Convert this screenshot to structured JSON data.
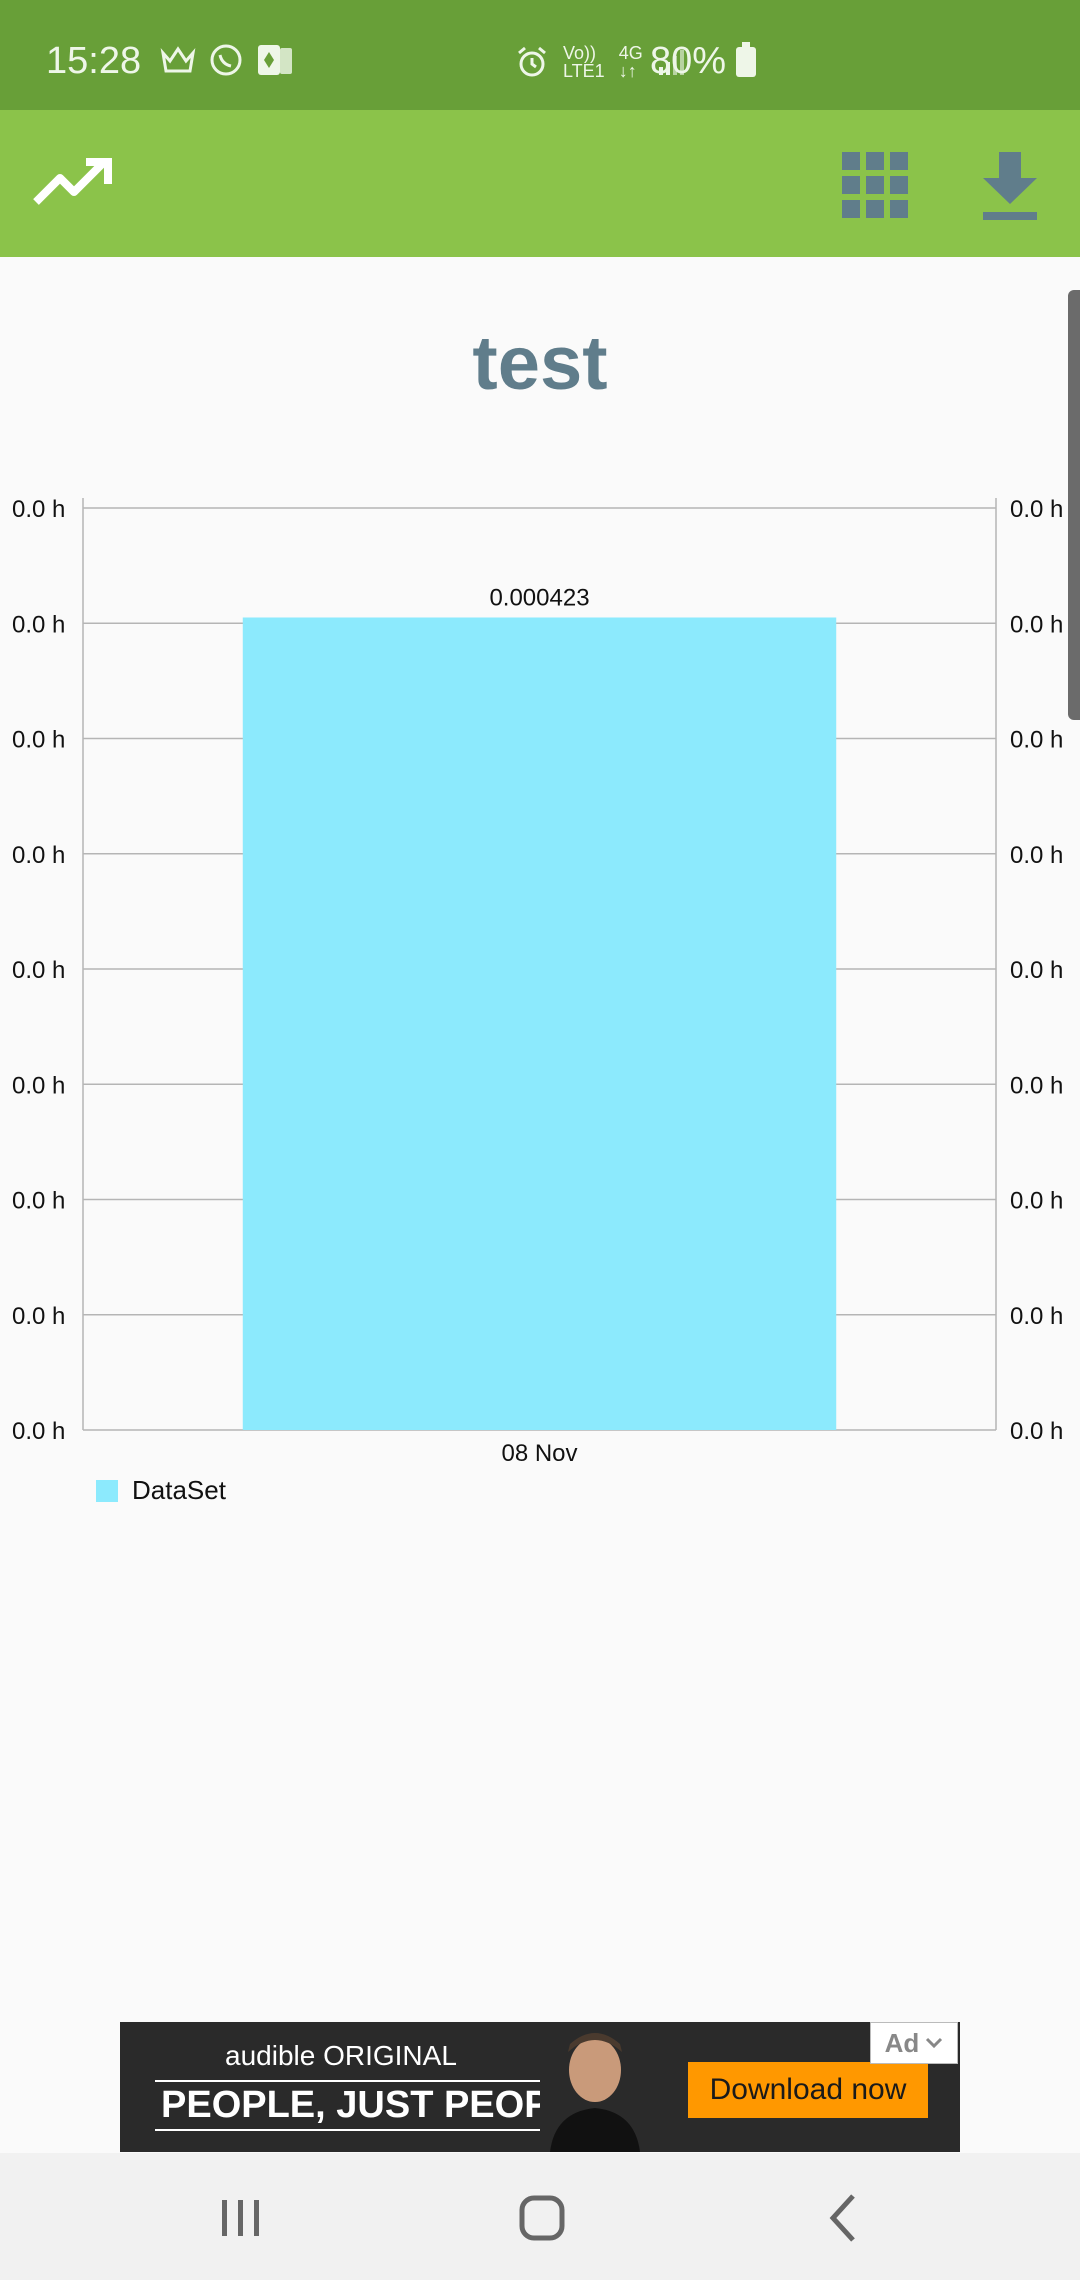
{
  "status_bar": {
    "time": "15:28",
    "network_top": "Vo))",
    "network_bottom": "LTE1",
    "data_label": "4G",
    "battery": "80%",
    "icons": [
      "crown-icon",
      "whatsapp-icon",
      "card-game-icon",
      "alarm-icon",
      "signal-icon",
      "battery-icon"
    ]
  },
  "app_bar": {
    "icons": [
      "trending-up-icon",
      "grid-icon",
      "download-icon"
    ],
    "color": "#8bc34a"
  },
  "chart": {
    "title": "test"
  },
  "chart_data": {
    "type": "bar",
    "title": "test",
    "categories": [
      "08 Nov"
    ],
    "series": [
      {
        "name": "DataSet",
        "values": [
          0.000423
        ],
        "color": "#8ceafd"
      }
    ],
    "value_labels": [
      "0.000423"
    ],
    "left_axis_ticks": [
      "0.0 h",
      "0.0 h",
      "0.0 h",
      "0.0 h",
      "0.0 h",
      "0.0 h",
      "0.0 h",
      "0.0 h",
      "0.0 h"
    ],
    "right_axis_ticks": [
      "0.0 h",
      "0.0 h",
      "0.0 h",
      "0.0 h",
      "0.0 h",
      "0.0 h",
      "0.0 h",
      "0.0 h",
      "0.0 h"
    ],
    "ylim": [
      0,
      0.00048
    ],
    "grid": true,
    "legend_position": "bottom-left"
  },
  "ad": {
    "brand": "audible ORIGINAL",
    "headline": "PEOPLE, JUST PEOPLE",
    "cta": "Download now",
    "tag": "Ad"
  },
  "nav_bar": {
    "icons": [
      "recent-apps-icon",
      "home-icon",
      "back-icon"
    ]
  }
}
